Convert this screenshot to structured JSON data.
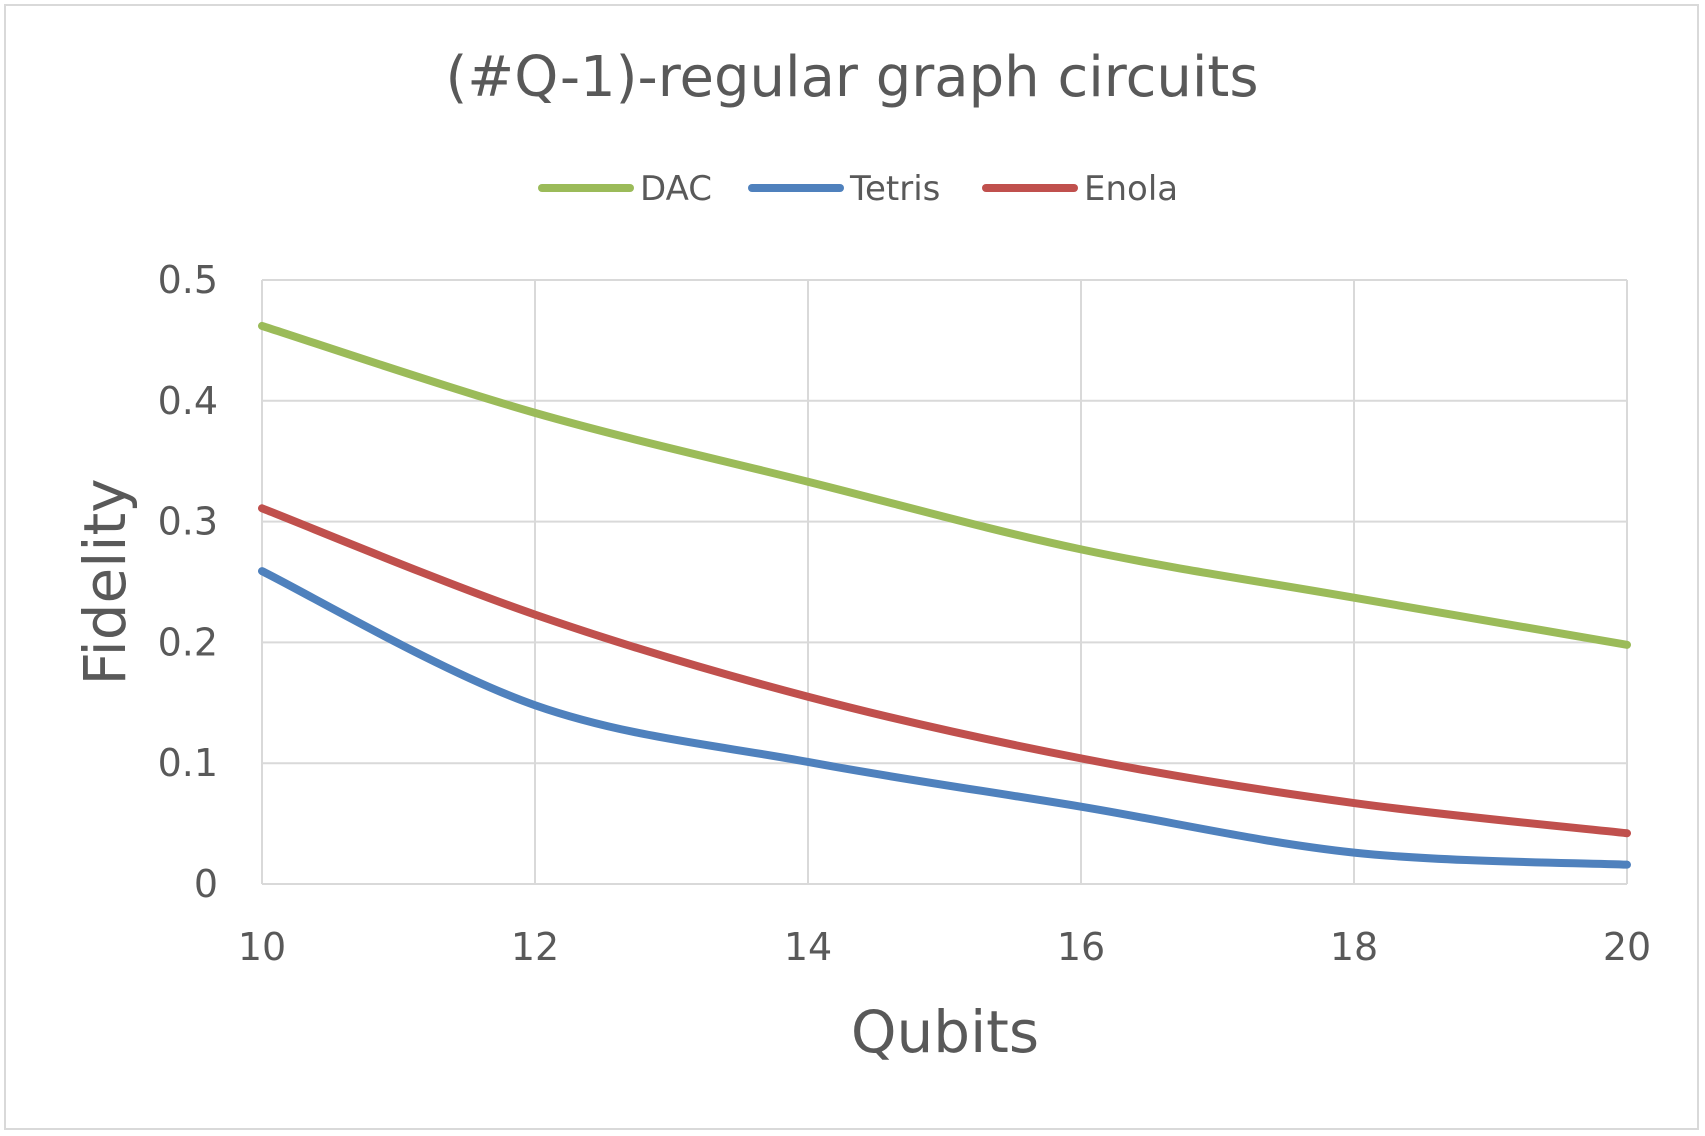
{
  "chart_data": {
    "type": "line",
    "title": "(#Q-1)-regular graph circuits",
    "xlabel": "Qubits",
    "ylabel": "Fidelity",
    "x": [
      10,
      12,
      14,
      16,
      18,
      20
    ],
    "xlim": [
      10,
      20
    ],
    "ylim": [
      0,
      0.5
    ],
    "xticks": [
      "10",
      "12",
      "14",
      "16",
      "18",
      "20"
    ],
    "yticks": [
      "0",
      "0.1",
      "0.2",
      "0.3",
      "0.4",
      "0.5"
    ],
    "grid": true,
    "legend_position": "top",
    "series": [
      {
        "name": "DAC",
        "color": "#9bbb59",
        "values": [
          0.462,
          0.39,
          0.333,
          0.277,
          0.237,
          0.198
        ]
      },
      {
        "name": "Tetris",
        "color": "#4f81bd",
        "values": [
          0.259,
          0.148,
          0.101,
          0.064,
          0.026,
          0.016
        ]
      },
      {
        "name": "Enola",
        "color": "#c0504d",
        "values": [
          0.311,
          0.223,
          0.155,
          0.104,
          0.067,
          0.042
        ]
      }
    ]
  }
}
